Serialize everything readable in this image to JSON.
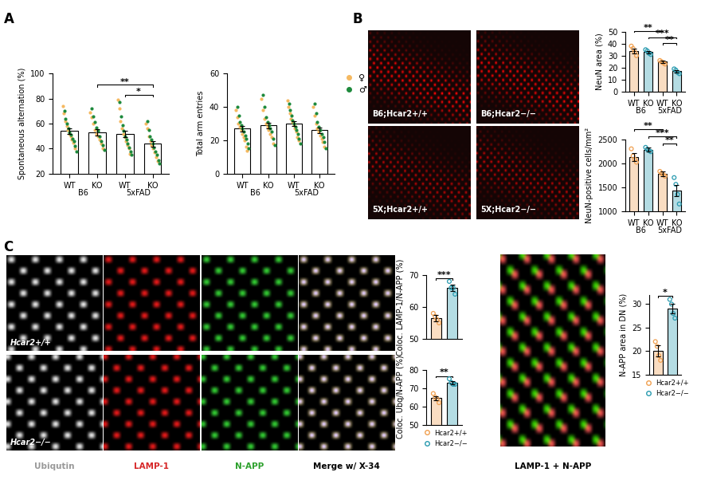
{
  "panel_labels": [
    "A",
    "B",
    "C"
  ],
  "chart_data": [
    {
      "type": "bar",
      "ylabel": "Spontaneous alternation (%)",
      "categories": [
        "WT",
        "KO",
        "WT",
        "KO"
      ],
      "groups": [
        {
          "label": "B6",
          "members": [
            0,
            1
          ]
        },
        {
          "label": "5xFAD",
          "members": [
            2,
            3
          ]
        }
      ],
      "values": [
        54,
        53,
        52,
        44
      ],
      "errors": [
        2.5,
        2.3,
        2.6,
        2.2
      ],
      "color": "#ffffff",
      "series": [
        {
          "name": "♀",
          "color": "#f5b961",
          "values": [
            [
              74,
              68,
              62,
              58,
              55,
              52,
              50,
              47,
              45,
              40
            ],
            [
              69,
              65,
              60,
              55,
              52,
              50,
              47,
              44,
              40
            ],
            [
              79,
              72,
              62,
              56,
              52,
              49,
              46,
              43,
              40,
              36
            ],
            [
              60,
              56,
              50,
              46,
              43,
              40,
              37,
              33,
              30
            ]
          ]
        },
        {
          "name": "♂",
          "color": "#1e8a3c",
          "values": [
            [
              70,
              64,
              60,
              56,
              53,
              51,
              48,
              46,
              42,
              38
            ],
            [
              72,
              66,
              61,
              57,
              54,
              50,
              46,
              43,
              39
            ],
            [
              77,
              66,
              59,
              54,
              50,
              47,
              44,
              41,
              38,
              35
            ],
            [
              62,
              55,
              50,
              47,
              44,
              41,
              38,
              35,
              31,
              28
            ]
          ]
        }
      ],
      "ylim": [
        20,
        100
      ],
      "yticks": [
        20,
        40,
        60,
        80,
        100
      ],
      "significance": [
        {
          "pair": [
            2,
            3
          ],
          "label": "*"
        },
        {
          "pair": [
            1,
            3
          ],
          "label": "**"
        }
      ]
    },
    {
      "type": "bar",
      "ylabel": "Total arm entries",
      "categories": [
        "WT",
        "KO",
        "WT",
        "KO"
      ],
      "groups": [
        {
          "label": "B6",
          "members": [
            0,
            1
          ]
        },
        {
          "label": "5xFAD",
          "members": [
            2,
            3
          ]
        }
      ],
      "values": [
        27,
        29,
        30,
        26
      ],
      "errors": [
        1.6,
        1.7,
        1.4,
        1.6
      ],
      "color": "#ffffff",
      "series": [
        {
          "name": "♀",
          "color": "#f5b961",
          "values": [
            [
              38,
              34,
              30,
              28,
              26,
              24,
              22,
              20,
              16,
              14
            ],
            [
              45,
              38,
              33,
              30,
              28,
              26,
              24,
              22,
              18
            ],
            [
              44,
              40,
              36,
              33,
              31,
              29,
              27,
              25,
              22,
              20
            ],
            [
              40,
              35,
              30,
              27,
              25,
              23,
              21,
              19,
              16
            ]
          ]
        },
        {
          "name": "♂",
          "color": "#1e8a3c",
          "values": [
            [
              40,
              35,
              31,
              29,
              27,
              25,
              23,
              21,
              18,
              15
            ],
            [
              47,
              40,
              34,
              31,
              29,
              27,
              25,
              21,
              17
            ],
            [
              42,
              38,
              35,
              32,
              30,
              28,
              26,
              24,
              21,
              18
            ],
            [
              42,
              36,
              31,
              28,
              26,
              24,
              22,
              19,
              15
            ]
          ]
        }
      ],
      "ylim": [
        0,
        60
      ],
      "yticks": [
        0,
        20,
        40,
        60
      ],
      "legend": "right"
    },
    {
      "type": "bar",
      "ylabel": "NeuN area (%)",
      "categories": [
        "WT",
        "KO",
        "WT",
        "KO"
      ],
      "groups": [
        {
          "label": "B6",
          "members": [
            0,
            1
          ]
        },
        {
          "label": "5xFAD",
          "members": [
            2,
            3
          ]
        }
      ],
      "values": [
        34,
        33,
        25,
        17
      ],
      "errors": [
        2.0,
        1.2,
        0.8,
        1.0
      ],
      "colors": [
        "#f0a050",
        "#2a9bb0",
        "#f0a050",
        "#2a9bb0"
      ],
      "points": [
        [
          38,
          36,
          33,
          30
        ],
        [
          35,
          34,
          32,
          31
        ],
        [
          26,
          25,
          24,
          23
        ],
        [
          19,
          18,
          16,
          15
        ]
      ],
      "ylim": [
        0,
        50
      ],
      "yticks": [
        0,
        10,
        20,
        30,
        40,
        50
      ],
      "significance": [
        {
          "pair": [
            2,
            3
          ],
          "label": "**"
        },
        {
          "pair": [
            1,
            3
          ],
          "label": "***"
        },
        {
          "pair": [
            0,
            2
          ],
          "label": "**"
        }
      ]
    },
    {
      "type": "bar",
      "ylabel": "NeuN-positive cells/mm²",
      "categories": [
        "WT",
        "KO",
        "WT",
        "KO"
      ],
      "groups": [
        {
          "label": "B6",
          "members": [
            0,
            1
          ]
        },
        {
          "label": "5xFAD",
          "members": [
            2,
            3
          ]
        }
      ],
      "values": [
        2130,
        2280,
        1780,
        1430
      ],
      "errors": [
        80,
        40,
        50,
        120
      ],
      "colors": [
        "#f0a050",
        "#2a9bb0",
        "#f0a050",
        "#2a9bb0"
      ],
      "points": [
        [
          2300,
          2150,
          2080,
          2020
        ],
        [
          2330,
          2290,
          2260,
          2240
        ],
        [
          1830,
          1790,
          1760,
          1730
        ],
        [
          1700,
          1560,
          1350,
          1150
        ]
      ],
      "ylim": [
        1000,
        2500
      ],
      "yticks": [
        1000,
        1500,
        2000,
        2500
      ],
      "significance": [
        {
          "pair": [
            2,
            3
          ],
          "label": "**"
        },
        {
          "pair": [
            1,
            3
          ],
          "label": "***"
        },
        {
          "pair": [
            0,
            2
          ],
          "label": "**"
        }
      ]
    },
    {
      "type": "bar",
      "ylabel": "Coloc. LAMP-1/N-APP (%)",
      "categories": [
        "Hcar2+/+",
        "Hcar2−/−"
      ],
      "tick_labels": "y",
      "values": [
        56.5,
        66
      ],
      "errors": [
        1.0,
        1.0
      ],
      "colors": [
        "#f0a050",
        "#2a9bb0"
      ],
      "points": [
        [
          58,
          57,
          56,
          55
        ],
        [
          68,
          66,
          66,
          64
        ]
      ],
      "ylim": [
        50,
        70
      ],
      "yticks": [
        50,
        60,
        70
      ],
      "significance": [
        {
          "pair": [
            0,
            1
          ],
          "label": "***"
        }
      ]
    },
    {
      "type": "bar",
      "ylabel": "Coloc. Ubq/N-APP (%)",
      "categories": [
        "Hcar2+/+",
        "Hcar2−/−"
      ],
      "tick_labels": "y",
      "values": [
        64.5,
        73
      ],
      "errors": [
        1.2,
        0.8
      ],
      "colors": [
        "#f0a050",
        "#2a9bb0"
      ],
      "points": [
        [
          67,
          65,
          64,
          62
        ],
        [
          75,
          73,
          72,
          72
        ]
      ],
      "ylim": [
        50,
        80
      ],
      "yticks": [
        50,
        60,
        70,
        80
      ],
      "legend": "bottom",
      "significance": [
        {
          "pair": [
            0,
            1
          ],
          "label": "**"
        }
      ]
    },
    {
      "type": "bar",
      "ylabel": "N-APP area in DN (%)",
      "categories": [
        "Hcar2+/+",
        "Hcar2−/−"
      ],
      "tick_labels": "y",
      "values": [
        20,
        29
      ],
      "errors": [
        1.2,
        1.0
      ],
      "colors": [
        "#f0a050",
        "#2a9bb0"
      ],
      "points": [
        [
          22,
          21,
          19,
          18
        ],
        [
          31,
          30,
          28,
          27
        ]
      ],
      "ylim": [
        15,
        32
      ],
      "yticks": [
        15,
        20,
        25,
        30
      ],
      "legend": "bottom",
      "significance": [
        {
          "pair": [
            0,
            1
          ],
          "label": "*"
        }
      ]
    }
  ],
  "images": {
    "B": [
      "B6;Hcar2+/+",
      "B6;Hcar2−/−",
      "5X;Hcar2+/+",
      "5X;Hcar2−/−"
    ],
    "C_genotypes": [
      "Hcar2+/+",
      "Hcar2−/−"
    ],
    "C_channels": [
      {
        "label": "Ubiqutin",
        "color": "#999999"
      },
      {
        "label": "LAMP-1",
        "color": "#d62728"
      },
      {
        "label": "N-APP",
        "color": "#2ca02c"
      },
      {
        "label": "Merge w/ X-34",
        "color": "#000000"
      }
    ],
    "C_right": "LAMP-1 + N-APP"
  }
}
